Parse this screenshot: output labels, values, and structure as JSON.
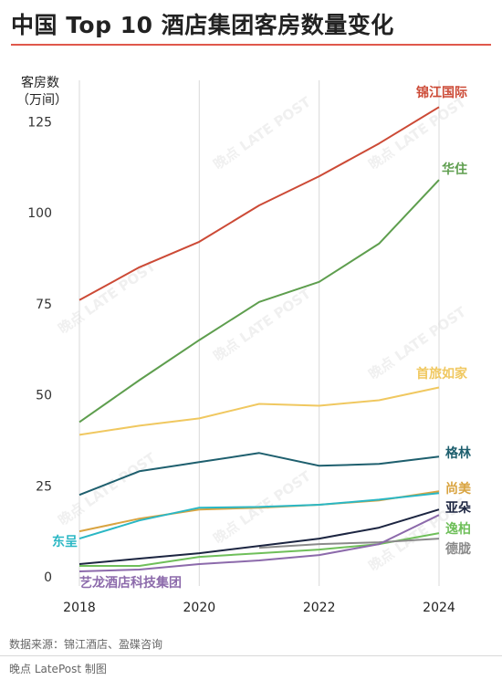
{
  "title": "中国 Top 10 酒店集团客房数量变化",
  "source": "数据来源：锦江酒店、盈碟咨询",
  "credit": "晚点 LatePost 制图",
  "watermark": "晚点 LATE POST",
  "chart_data": {
    "type": "line",
    "ylabel": [
      "客房数",
      "（万间）"
    ],
    "x": [
      2018,
      2019,
      2020,
      2021,
      2022,
      2023,
      2024
    ],
    "xticks": [
      "2018",
      "2020",
      "2022",
      "2024"
    ],
    "yticks": [
      0,
      25,
      50,
      75,
      100,
      125
    ],
    "ylim": [
      0,
      135
    ],
    "xlim": [
      2018,
      2024
    ],
    "grid": "vertical",
    "series": [
      {
        "name": "锦江国际",
        "color": "#cc4a36",
        "x": [
          2018,
          2019,
          2020,
          2021,
          2022,
          2023,
          2024
        ],
        "values": [
          76,
          85,
          92,
          102,
          110,
          119,
          129
        ]
      },
      {
        "name": "华住",
        "color": "#5e9e4e",
        "x": [
          2018,
          2019,
          2020,
          2021,
          2022,
          2023,
          2024
        ],
        "values": [
          42.5,
          54,
          65,
          75.5,
          81,
          91.5,
          109
        ]
      },
      {
        "name": "首旅如家",
        "color": "#f0c860",
        "x": [
          2018,
          2019,
          2020,
          2021,
          2022,
          2023,
          2024
        ],
        "values": [
          39,
          41.5,
          43.5,
          47.5,
          47,
          48.5,
          52
        ]
      },
      {
        "name": "格林",
        "color": "#1e5f6e",
        "x": [
          2018,
          2019,
          2020,
          2021,
          2022,
          2023,
          2024
        ],
        "values": [
          22.5,
          29,
          31.5,
          34,
          30.5,
          31,
          33
        ]
      },
      {
        "name": "尚美",
        "color": "#d9a441",
        "x": [
          2018,
          2019,
          2020,
          2021,
          2022,
          2023,
          2024
        ],
        "values": [
          12.5,
          16,
          18.5,
          19,
          19.8,
          21,
          23.5
        ]
      },
      {
        "name": "东呈",
        "color": "#2ab7c4",
        "x": [
          2018,
          2019,
          2020,
          2021,
          2022,
          2023,
          2024
        ],
        "values": [
          10.5,
          15.5,
          19,
          19.2,
          19.8,
          21.2,
          23
        ]
      },
      {
        "name": "亚朵",
        "color": "#1c2541",
        "x": [
          2018,
          2019,
          2020,
          2021,
          2022,
          2023,
          2024
        ],
        "values": [
          3.5,
          5,
          6.5,
          8.5,
          10.5,
          13.5,
          18.5
        ]
      },
      {
        "name": "逸柏",
        "color": "#6fbf5a",
        "x": [
          2018,
          2019,
          2020,
          2021,
          2022,
          2023,
          2024
        ],
        "values": [
          3,
          3,
          5.5,
          6.5,
          7.5,
          9,
          12
        ]
      },
      {
        "name": "德胧",
        "color": "#8a8a8a",
        "x": [
          2021,
          2022,
          2023,
          2024
        ],
        "values": [
          8,
          9,
          9.5,
          10.5
        ]
      },
      {
        "name": "艺龙酒店科技集团",
        "color": "#8c6aab",
        "x": [
          2018,
          2019,
          2020,
          2021,
          2022,
          2023,
          2024
        ],
        "values": [
          1.5,
          2,
          3.5,
          4.5,
          6,
          9,
          17
        ]
      }
    ]
  }
}
